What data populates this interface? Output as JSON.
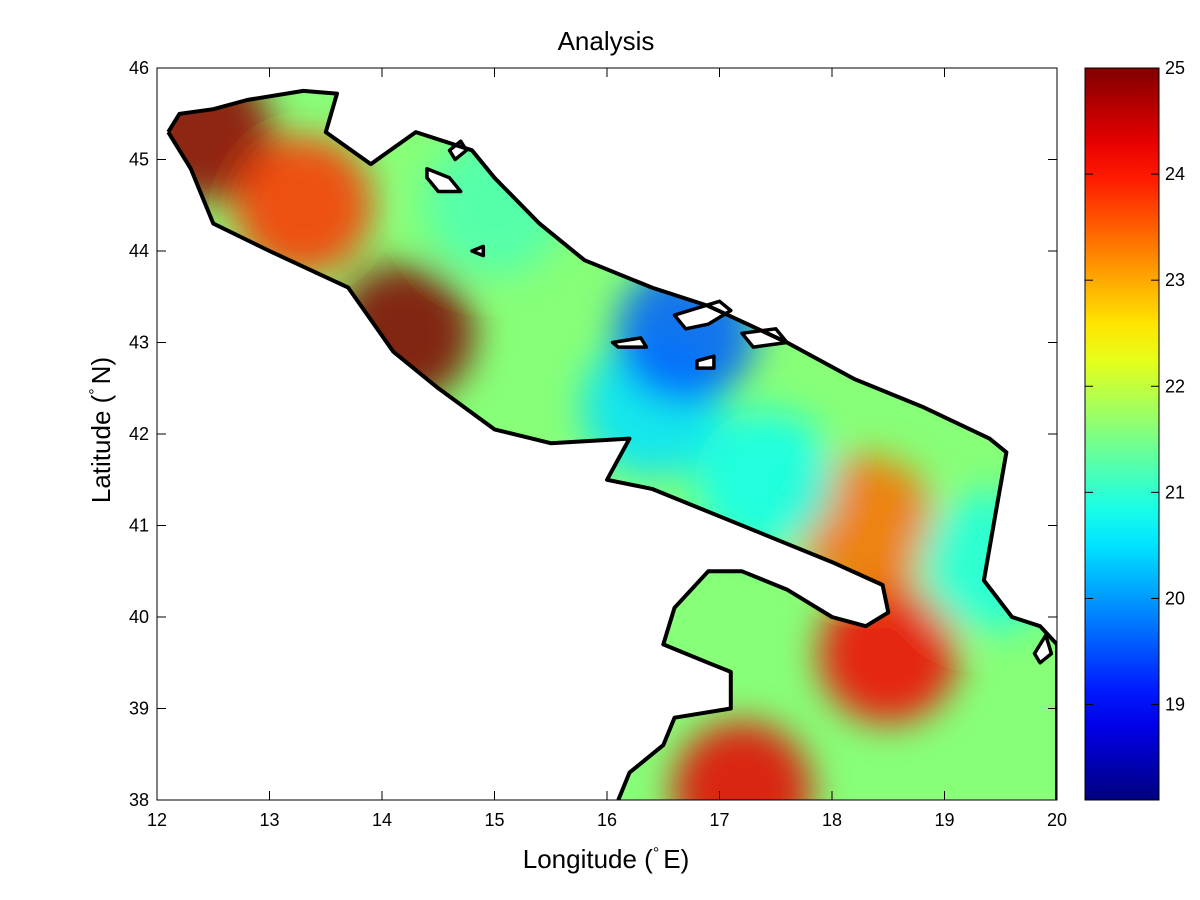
{
  "chart_data": {
    "type": "heatmap",
    "title": "Analysis",
    "xlabel": "Longitude (",
    "xlabel_unit": "E)",
    "ylabel": "Latitude (",
    "ylabel_unit": "N)",
    "degree_symbol": "°",
    "xlim": [
      12,
      20
    ],
    "ylim": [
      38,
      46
    ],
    "xticks": [
      12,
      13,
      14,
      15,
      16,
      17,
      18,
      19,
      20
    ],
    "yticks": [
      38,
      39,
      40,
      41,
      42,
      43,
      44,
      45,
      46
    ],
    "colorbar": {
      "colormap": "jet",
      "range": [
        18.1,
        25.0
      ],
      "ticks": [
        19,
        20,
        21,
        22,
        23,
        24,
        25
      ]
    },
    "coastline_color": "#000000",
    "land_color": "#ffffff",
    "field_hotspots": [
      {
        "lon": 12.4,
        "lat": 45.3,
        "value": 24.9
      },
      {
        "lon": 13.3,
        "lat": 44.5,
        "value": 23.8
      },
      {
        "lon": 14.2,
        "lat": 43.1,
        "value": 25.0
      },
      {
        "lon": 16.4,
        "lat": 42.3,
        "value": 20.5
      },
      {
        "lon": 16.7,
        "lat": 43.1,
        "value": 19.6
      },
      {
        "lon": 15.0,
        "lat": 44.5,
        "value": 21.2
      },
      {
        "lon": 18.5,
        "lat": 39.6,
        "value": 24.2
      },
      {
        "lon": 17.2,
        "lat": 38.1,
        "value": 24.3
      },
      {
        "lon": 18.3,
        "lat": 41.0,
        "value": 23.4
      },
      {
        "lon": 19.4,
        "lat": 40.6,
        "value": 20.9
      },
      {
        "lon": 17.4,
        "lat": 41.5,
        "value": 20.8
      }
    ],
    "sea_outline_north": [
      [
        12.1,
        45.3
      ],
      [
        12.2,
        45.5
      ],
      [
        12.5,
        45.55
      ],
      [
        12.8,
        45.65
      ],
      [
        13.3,
        45.75
      ],
      [
        13.6,
        45.72
      ],
      [
        13.5,
        45.3
      ],
      [
        13.9,
        44.95
      ],
      [
        14.3,
        45.3
      ],
      [
        14.8,
        45.1
      ],
      [
        15.0,
        44.8
      ],
      [
        15.4,
        44.3
      ],
      [
        15.8,
        43.9
      ],
      [
        16.4,
        43.6
      ],
      [
        16.9,
        43.4
      ],
      [
        17.6,
        43.0
      ],
      [
        18.2,
        42.6
      ],
      [
        18.8,
        42.3
      ],
      [
        19.4,
        41.95
      ],
      [
        19.55,
        41.8
      ],
      [
        19.45,
        41.1
      ],
      [
        19.35,
        40.4
      ],
      [
        19.6,
        40.0
      ],
      [
        19.85,
        39.9
      ],
      [
        20.0,
        39.7
      ],
      [
        20.0,
        38.0
      ]
    ],
    "sea_outline_west": [
      [
        12.1,
        45.3
      ],
      [
        12.3,
        44.9
      ],
      [
        12.5,
        44.3
      ],
      [
        13.0,
        44.0
      ],
      [
        13.7,
        43.6
      ],
      [
        14.1,
        42.9
      ],
      [
        14.5,
        42.5
      ],
      [
        15.0,
        42.05
      ],
      [
        15.5,
        41.9
      ],
      [
        16.2,
        41.95
      ],
      [
        16.0,
        41.5
      ],
      [
        16.4,
        41.4
      ],
      [
        17.0,
        41.1
      ],
      [
        17.6,
        40.8
      ],
      [
        18.0,
        40.6
      ],
      [
        18.45,
        40.35
      ],
      [
        18.5,
        40.05
      ],
      [
        18.3,
        39.9
      ],
      [
        18.0,
        40.0
      ],
      [
        17.6,
        40.3
      ],
      [
        17.2,
        40.5
      ],
      [
        16.9,
        40.5
      ],
      [
        16.6,
        40.1
      ],
      [
        16.5,
        39.7
      ],
      [
        16.9,
        39.5
      ],
      [
        17.1,
        39.4
      ],
      [
        17.1,
        39.0
      ],
      [
        16.6,
        38.9
      ],
      [
        16.5,
        38.6
      ],
      [
        16.2,
        38.3
      ],
      [
        16.1,
        38.0
      ]
    ],
    "islands": [
      [
        [
          14.4,
          44.9
        ],
        [
          14.6,
          44.8
        ],
        [
          14.7,
          44.65
        ],
        [
          14.5,
          44.65
        ],
        [
          14.4,
          44.8
        ]
      ],
      [
        [
          14.6,
          45.1
        ],
        [
          14.7,
          45.2
        ],
        [
          14.75,
          45.1
        ],
        [
          14.65,
          45.0
        ]
      ],
      [
        [
          14.8,
          44.0
        ],
        [
          14.9,
          44.05
        ],
        [
          14.9,
          43.95
        ]
      ],
      [
        [
          16.05,
          43.0
        ],
        [
          16.3,
          43.05
        ],
        [
          16.35,
          42.95
        ],
        [
          16.1,
          42.95
        ]
      ],
      [
        [
          16.6,
          43.3
        ],
        [
          17.0,
          43.45
        ],
        [
          17.1,
          43.35
        ],
        [
          16.9,
          43.2
        ],
        [
          16.7,
          43.15
        ]
      ],
      [
        [
          16.8,
          42.8
        ],
        [
          16.95,
          42.85
        ],
        [
          16.95,
          42.72
        ],
        [
          16.8,
          42.72
        ]
      ],
      [
        [
          17.2,
          43.1
        ],
        [
          17.5,
          43.15
        ],
        [
          17.6,
          43.0
        ],
        [
          17.3,
          42.95
        ]
      ],
      [
        [
          19.8,
          39.6
        ],
        [
          19.9,
          39.8
        ],
        [
          19.95,
          39.6
        ],
        [
          19.85,
          39.5
        ]
      ]
    ]
  }
}
